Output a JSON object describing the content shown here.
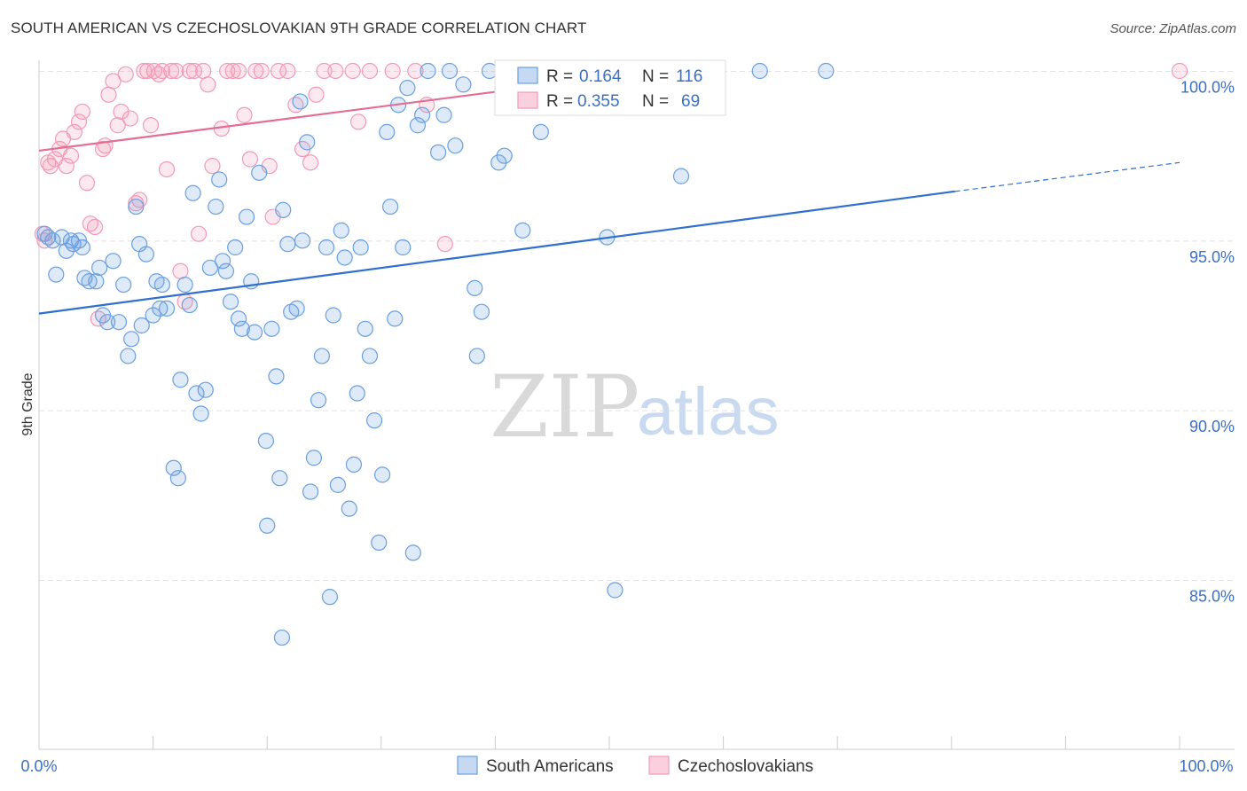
{
  "title": "SOUTH AMERICAN VS CZECHOSLOVAKIAN 9TH GRADE CORRELATION CHART",
  "source": "Source: ZipAtlas.com",
  "watermark": {
    "zip": "ZIP",
    "atlas": "atlas"
  },
  "colors": {
    "blue": "#6a9fe0",
    "blue_line": "#2f6fcf",
    "pink": "#f29ab7",
    "pink_line": "#e46d93",
    "axis_text": "#3b6fc4",
    "grid": "#e2e2e2"
  },
  "legend": {
    "r_label": "R =",
    "n_label": "N =",
    "blue": {
      "r": "0.164",
      "n": "116"
    },
    "pink": {
      "r": "0.355",
      "n": "69"
    }
  },
  "bottom_legend": {
    "blue": "South Americans",
    "pink": "Czechoslovakians"
  },
  "chart_data": {
    "type": "scatter",
    "title": "SOUTH AMERICAN VS CZECHOSLOVAKIAN 9TH GRADE CORRELATION CHART",
    "xlabel": "",
    "ylabel": "9th Grade",
    "xlim": [
      0,
      100
    ],
    "ylim": [
      80.2,
      100.5
    ],
    "xtick_labels": [
      "0.0%",
      "100.0%"
    ],
    "ytick_values": [
      85,
      90,
      95,
      100
    ],
    "ytick_labels": [
      "85.0%",
      "90.0%",
      "95.0%",
      "100.0%"
    ],
    "series": [
      {
        "name": "South Americans",
        "color": "#6a9fe0",
        "r": 0.164,
        "n": 116,
        "trend": {
          "x0": 0,
          "y0": 92.85,
          "x1": 80.3,
          "y1": 96.45,
          "dash_to_x": 100,
          "dash_to_y": 97.3
        },
        "points": [
          [
            0.5,
            95.2
          ],
          [
            0.8,
            95.1
          ],
          [
            1.2,
            95.0
          ],
          [
            1.5,
            94.0
          ],
          [
            2.0,
            95.1
          ],
          [
            2.4,
            94.7
          ],
          [
            2.8,
            95.0
          ],
          [
            3.0,
            94.9
          ],
          [
            3.5,
            95.0
          ],
          [
            3.8,
            94.8
          ],
          [
            4.0,
            93.9
          ],
          [
            4.4,
            93.8
          ],
          [
            5.0,
            93.8
          ],
          [
            5.3,
            94.2
          ],
          [
            5.6,
            92.8
          ],
          [
            6.0,
            92.6
          ],
          [
            6.5,
            94.4
          ],
          [
            7.0,
            92.6
          ],
          [
            7.4,
            93.7
          ],
          [
            7.8,
            91.6
          ],
          [
            8.1,
            92.1
          ],
          [
            8.5,
            96.0
          ],
          [
            8.8,
            94.9
          ],
          [
            9.0,
            92.5
          ],
          [
            9.4,
            94.6
          ],
          [
            10.0,
            92.8
          ],
          [
            10.3,
            93.8
          ],
          [
            10.6,
            93.0
          ],
          [
            10.8,
            93.7
          ],
          [
            11.2,
            93.0
          ],
          [
            11.8,
            88.3
          ],
          [
            12.4,
            90.9
          ],
          [
            12.8,
            93.7
          ],
          [
            13.2,
            93.1
          ],
          [
            13.5,
            96.4
          ],
          [
            13.8,
            90.5
          ],
          [
            14.2,
            89.9
          ],
          [
            14.6,
            90.6
          ],
          [
            15.0,
            94.2
          ],
          [
            15.5,
            96.0
          ],
          [
            15.8,
            96.8
          ],
          [
            16.1,
            94.4
          ],
          [
            16.4,
            94.1
          ],
          [
            16.8,
            93.2
          ],
          [
            17.2,
            94.8
          ],
          [
            17.5,
            92.7
          ],
          [
            17.8,
            92.4
          ],
          [
            18.2,
            95.7
          ],
          [
            18.6,
            93.8
          ],
          [
            18.9,
            92.3
          ],
          [
            19.3,
            97.0
          ],
          [
            19.9,
            89.1
          ],
          [
            20.4,
            92.4
          ],
          [
            20.8,
            91.0
          ],
          [
            21.1,
            88.0
          ],
          [
            21.4,
            95.9
          ],
          [
            21.8,
            94.9
          ],
          [
            22.1,
            92.9
          ],
          [
            22.6,
            93.0
          ],
          [
            22.9,
            99.1
          ],
          [
            23.1,
            95.0
          ],
          [
            23.5,
            97.9
          ],
          [
            23.8,
            87.6
          ],
          [
            24.1,
            88.6
          ],
          [
            24.5,
            90.3
          ],
          [
            24.8,
            91.6
          ],
          [
            25.2,
            94.8
          ],
          [
            25.5,
            84.5
          ],
          [
            25.8,
            92.8
          ],
          [
            26.2,
            87.8
          ],
          [
            26.5,
            95.3
          ],
          [
            26.8,
            94.5
          ],
          [
            27.2,
            87.1
          ],
          [
            27.6,
            88.4
          ],
          [
            27.9,
            90.5
          ],
          [
            28.2,
            94.8
          ],
          [
            28.6,
            92.4
          ],
          [
            29.0,
            91.6
          ],
          [
            29.4,
            89.7
          ],
          [
            29.8,
            86.1
          ],
          [
            30.1,
            88.1
          ],
          [
            30.5,
            98.2
          ],
          [
            30.8,
            96.0
          ],
          [
            31.2,
            92.7
          ],
          [
            31.5,
            99.0
          ],
          [
            31.9,
            94.8
          ],
          [
            32.3,
            99.5
          ],
          [
            32.8,
            85.8
          ],
          [
            33.2,
            98.4
          ],
          [
            33.6,
            98.7
          ],
          [
            34.1,
            100.0
          ],
          [
            35.0,
            97.6
          ],
          [
            35.5,
            98.7
          ],
          [
            36.0,
            100.0
          ],
          [
            36.5,
            97.8
          ],
          [
            37.2,
            99.6
          ],
          [
            38.4,
            91.6
          ],
          [
            38.8,
            92.9
          ],
          [
            39.5,
            100.0
          ],
          [
            40.3,
            97.3
          ],
          [
            40.8,
            97.5
          ],
          [
            42.0,
            99.8
          ],
          [
            42.4,
            95.3
          ],
          [
            44.0,
            98.2
          ],
          [
            46.5,
            100.0
          ],
          [
            48.0,
            100.0
          ],
          [
            49.8,
            95.1
          ],
          [
            50.5,
            84.7
          ],
          [
            56.3,
            96.9
          ],
          [
            69.0,
            100.0
          ],
          [
            63.2,
            100.0
          ],
          [
            20.0,
            86.6
          ],
          [
            21.3,
            83.3
          ],
          [
            12.2,
            88.0
          ],
          [
            38.2,
            93.6
          ]
        ]
      },
      {
        "name": "Czechoslovakians",
        "color": "#f29ab7",
        "r": 0.355,
        "n": 69,
        "trend": {
          "x0": 0,
          "y0": 97.65,
          "x1": 54.2,
          "y1": 100.0
        },
        "points": [
          [
            0.3,
            95.2
          ],
          [
            0.5,
            95.0
          ],
          [
            0.8,
            97.3
          ],
          [
            1.0,
            97.2
          ],
          [
            1.4,
            97.4
          ],
          [
            1.8,
            97.7
          ],
          [
            2.1,
            98.0
          ],
          [
            2.4,
            97.2
          ],
          [
            2.8,
            97.5
          ],
          [
            3.1,
            98.2
          ],
          [
            3.5,
            98.5
          ],
          [
            3.8,
            98.8
          ],
          [
            4.2,
            96.7
          ],
          [
            4.5,
            95.5
          ],
          [
            4.9,
            95.4
          ],
          [
            5.2,
            92.7
          ],
          [
            5.6,
            97.7
          ],
          [
            6.1,
            99.3
          ],
          [
            6.5,
            99.7
          ],
          [
            6.9,
            98.4
          ],
          [
            7.2,
            98.8
          ],
          [
            7.6,
            99.9
          ],
          [
            8.0,
            98.6
          ],
          [
            8.5,
            96.1
          ],
          [
            8.8,
            96.2
          ],
          [
            9.2,
            100.0
          ],
          [
            9.5,
            100.0
          ],
          [
            9.8,
            98.4
          ],
          [
            10.1,
            100.0
          ],
          [
            10.5,
            99.9
          ],
          [
            10.8,
            100.0
          ],
          [
            11.2,
            97.1
          ],
          [
            11.6,
            100.0
          ],
          [
            12.0,
            100.0
          ],
          [
            12.4,
            94.1
          ],
          [
            12.8,
            93.2
          ],
          [
            13.2,
            100.0
          ],
          [
            13.6,
            100.0
          ],
          [
            14.0,
            95.2
          ],
          [
            14.4,
            100.0
          ],
          [
            14.8,
            99.6
          ],
          [
            15.2,
            97.2
          ],
          [
            16.0,
            98.3
          ],
          [
            16.5,
            100.0
          ],
          [
            17.0,
            100.0
          ],
          [
            17.5,
            100.0
          ],
          [
            18.0,
            98.7
          ],
          [
            18.5,
            97.4
          ],
          [
            19.0,
            100.0
          ],
          [
            19.5,
            100.0
          ],
          [
            20.2,
            97.2
          ],
          [
            20.5,
            95.7
          ],
          [
            21.0,
            100.0
          ],
          [
            21.8,
            100.0
          ],
          [
            22.5,
            99.0
          ],
          [
            23.1,
            97.7
          ],
          [
            23.8,
            97.3
          ],
          [
            24.3,
            99.3
          ],
          [
            25.0,
            100.0
          ],
          [
            26.0,
            100.0
          ],
          [
            27.5,
            100.0
          ],
          [
            28.0,
            98.5
          ],
          [
            29.0,
            100.0
          ],
          [
            31.0,
            100.0
          ],
          [
            33.0,
            100.0
          ],
          [
            34.0,
            99.0
          ],
          [
            35.6,
            94.9
          ],
          [
            100.0,
            100.0
          ],
          [
            5.8,
            97.8
          ]
        ]
      }
    ]
  }
}
